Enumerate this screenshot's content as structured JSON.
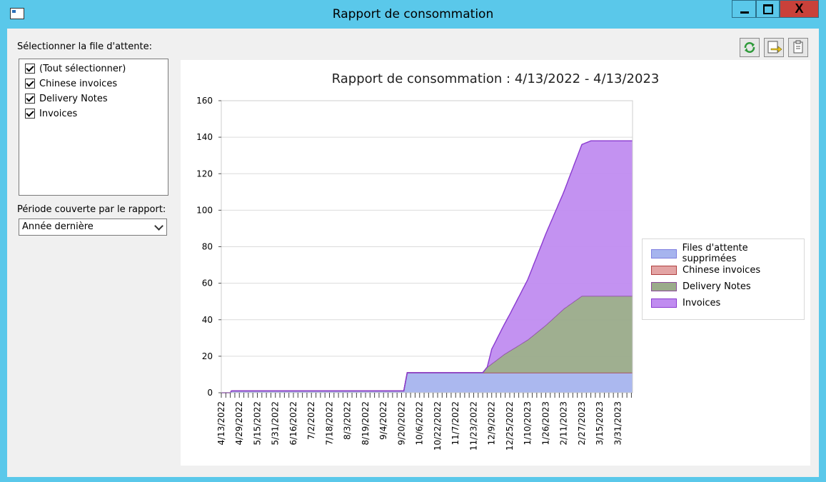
{
  "window": {
    "title": "Rapport de consommation",
    "close_glyph": "X",
    "icon": "app-window-icon"
  },
  "left_panel": {
    "queue_label": "Sélectionner la file d'attente:",
    "queues": [
      {
        "label": "(Tout sélectionner)",
        "checked": true
      },
      {
        "label": "Chinese invoices",
        "checked": true
      },
      {
        "label": "Delivery Notes",
        "checked": true
      },
      {
        "label": "Invoices",
        "checked": true
      }
    ],
    "period_label": "Période couverte par le rapport:",
    "period_value": "Année dernière"
  },
  "toolbar": {
    "refresh_icon": "refresh-icon",
    "export_icon": "export-icon",
    "copy_icon": "copy-icon"
  },
  "chart_data": {
    "type": "area",
    "stacked": true,
    "title": "Rapport de consommation : 4/13/2022 - 4/13/2023",
    "ylim": [
      0,
      160
    ],
    "y_ticks": [
      "0",
      "20",
      "40",
      "60",
      "80",
      "100",
      "120",
      "140",
      "160"
    ],
    "x_tick_labels": [
      "4/13/2022",
      "4/29/2022",
      "5/15/2022",
      "5/31/2022",
      "6/16/2022",
      "7/2/2022",
      "7/18/2022",
      "8/3/2022",
      "8/19/2022",
      "9/4/2022",
      "9/20/2022",
      "10/6/2022",
      "10/22/2022",
      "11/7/2022",
      "11/23/2022",
      "12/9/2022",
      "12/25/2022",
      "1/10/2023",
      "1/26/2023",
      "2/11/2023",
      "2/27/2023",
      "3/15/2023",
      "3/31/2023"
    ],
    "grid": true,
    "legend_position": "right",
    "series": [
      {
        "name": "Files d'attente supprimées",
        "color": "#a6b4ee",
        "stroke": "#7f7fe0",
        "points": [
          [
            "4/13/2022",
            0
          ],
          [
            "4/21/2022",
            0
          ],
          [
            "4/22/2022",
            1
          ],
          [
            "9/22/2022",
            1
          ],
          [
            "9/25/2022",
            11
          ],
          [
            "4/13/2023",
            11
          ]
        ]
      },
      {
        "name": "Chinese invoices",
        "color": "#e3a4a4",
        "stroke": "#b04040",
        "points": [
          [
            "4/13/2022",
            0
          ],
          [
            "4/13/2023",
            0
          ]
        ]
      },
      {
        "name": "Delivery Notes",
        "color": "#9aab8a",
        "stroke": "#8a4a9a",
        "points": [
          [
            "4/13/2022",
            0
          ],
          [
            "12/1/2022",
            0
          ],
          [
            "12/5/2022",
            3
          ],
          [
            "12/20/2022",
            10
          ],
          [
            "1/10/2023",
            18
          ],
          [
            "1/26/2023",
            26
          ],
          [
            "2/11/2023",
            35
          ],
          [
            "2/27/2023",
            42
          ],
          [
            "3/1/2023",
            42
          ],
          [
            "4/13/2023",
            42
          ]
        ]
      },
      {
        "name": "Invoices",
        "color": "#c08cf0",
        "stroke": "#8a3ad0",
        "points": [
          [
            "4/13/2022",
            0
          ],
          [
            "12/1/2022",
            0
          ],
          [
            "12/5/2022",
            0
          ],
          [
            "12/9/2022",
            8
          ],
          [
            "12/25/2022",
            20
          ],
          [
            "1/10/2023",
            33
          ],
          [
            "1/26/2023",
            50
          ],
          [
            "2/11/2023",
            64
          ],
          [
            "2/27/2023",
            83
          ],
          [
            "3/7/2023",
            85
          ],
          [
            "4/13/2023",
            85
          ]
        ]
      }
    ]
  }
}
